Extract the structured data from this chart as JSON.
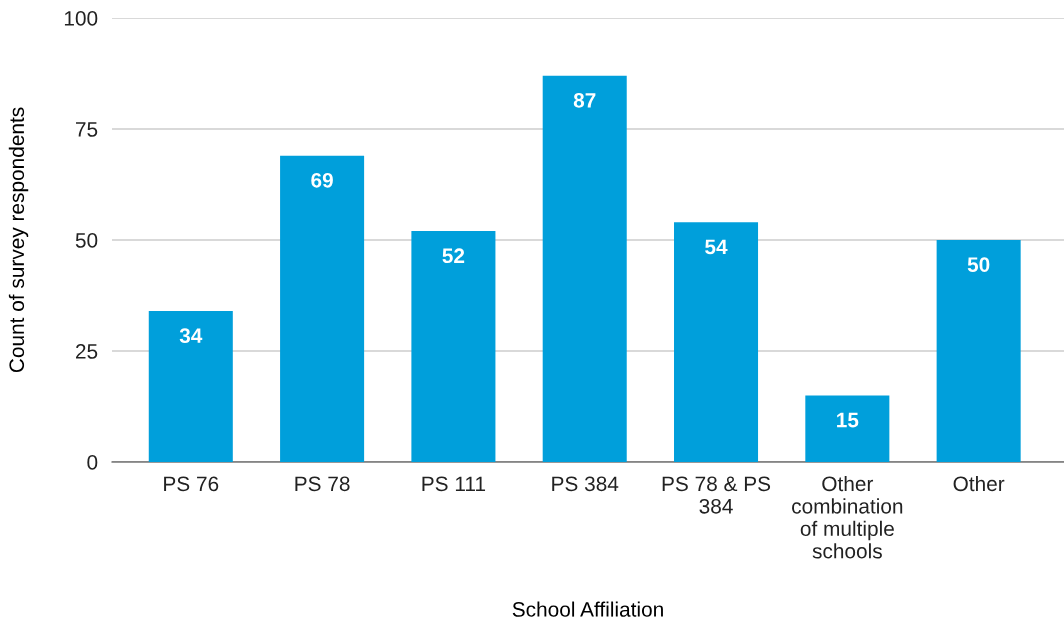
{
  "chart_data": {
    "type": "bar",
    "categories": [
      "PS 76",
      "PS 78",
      "PS 111",
      "PS 384",
      "PS 78 & PS\n384",
      "Other\ncombination\nof multiple\nschools",
      "Other"
    ],
    "values": [
      34,
      69,
      52,
      87,
      54,
      15,
      50
    ],
    "color": "#009fdb",
    "xlabel": "School Affiliation",
    "ylabel": "Count of survey respondents",
    "ylim": [
      0,
      100
    ],
    "yticks": [
      0,
      25,
      50,
      75,
      100
    ],
    "grid": "y",
    "data_labels": true
  }
}
